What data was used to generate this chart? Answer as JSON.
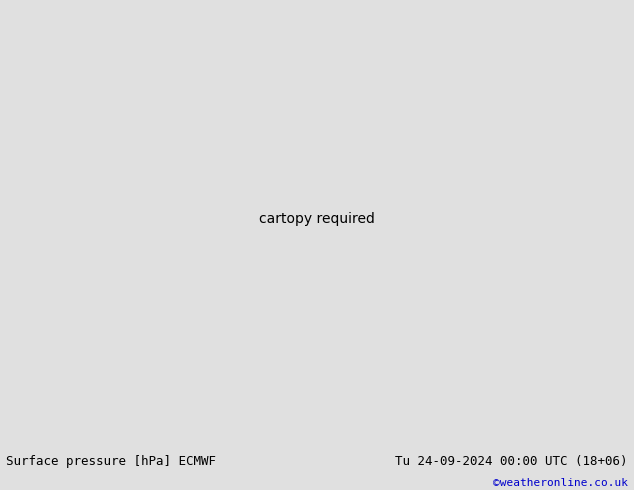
{
  "title_left": "Surface pressure [hPa] ECMWF",
  "title_right": "Tu 24-09-2024 00:00 UTC (18+06)",
  "credit": "©weatheronline.co.uk",
  "ocean_color": "#c8d8e8",
  "land_color": "#b8d9a0",
  "border_color": "#888888",
  "bottom_bar_color": "#e0e0e0",
  "text_color_left": "#000000",
  "text_color_right": "#000000",
  "credit_color": "#0000cc",
  "font_size_bottom": 9,
  "isobar_red_color": "#cc0000",
  "isobar_blue_color": "#0000cc",
  "isobar_black_color": "#000000",
  "lon_min": -25,
  "lon_max": 55,
  "lat_min": -47,
  "lat_max": 42
}
